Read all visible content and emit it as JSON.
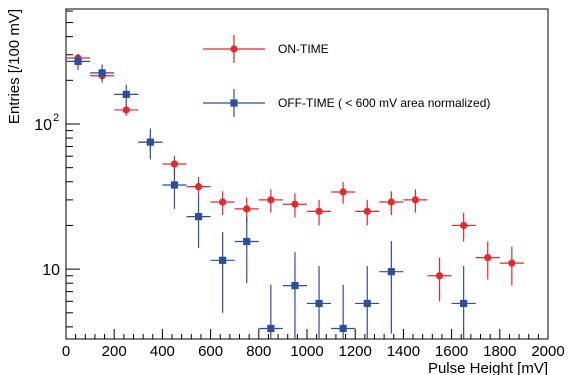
{
  "chart_data": {
    "type": "scatter",
    "xlabel": "Pulse Height [mV]",
    "ylabel": "Entries [/100 mV]",
    "xlim": [
      0,
      2000
    ],
    "ylim": [
      3.3,
      620
    ],
    "yscale": "log",
    "grid": false,
    "legend_placement": "top-center",
    "x_tick_labels": [
      "0",
      "200",
      "400",
      "600",
      "800",
      "1000",
      "1200",
      "1400",
      "1600",
      "1800",
      "2000"
    ],
    "y_tick_labels": [
      "10",
      "10"
    ],
    "y_tick_superscripts": [
      "",
      "2"
    ],
    "series": [
      {
        "name": "ON-TIME",
        "color": "#e8272b",
        "marker": "circle",
        "x": [
          50,
          150,
          250,
          350,
          450,
          550,
          650,
          750,
          850,
          950,
          1050,
          1150,
          1250,
          1350,
          1450,
          1550,
          1650,
          1750,
          1850
        ],
        "y": [
          285,
          215,
          125,
          75,
          53,
          37,
          29,
          26,
          30,
          28,
          25,
          34,
          25,
          29,
          30,
          9,
          20,
          12,
          11
        ],
        "yerr": [
          17,
          15,
          11,
          9,
          7.3,
          6.1,
          5.4,
          5.1,
          5.5,
          5.3,
          5,
          5.8,
          5,
          5.4,
          5.5,
          3,
          4.5,
          3.5,
          3.3
        ]
      },
      {
        "name": "OFF-TIME ( < 600 mV area normalized)",
        "color": "#2b4ea2",
        "marker": "square",
        "x": [
          50,
          150,
          250,
          350,
          450,
          550,
          650,
          750,
          850,
          950,
          1050,
          1150,
          1250,
          1350,
          1650
        ],
        "y": [
          270,
          225,
          160,
          75,
          38,
          23,
          11.5,
          15.5,
          3.9,
          7.7,
          5.8,
          3.9,
          5.8,
          9.6,
          5.8
        ],
        "yerr": [
          34,
          32,
          26,
          18,
          12,
          9,
          6.5,
          7.5,
          3.9,
          5.4,
          4.7,
          3.9,
          4.7,
          6,
          4.7
        ]
      }
    ]
  }
}
